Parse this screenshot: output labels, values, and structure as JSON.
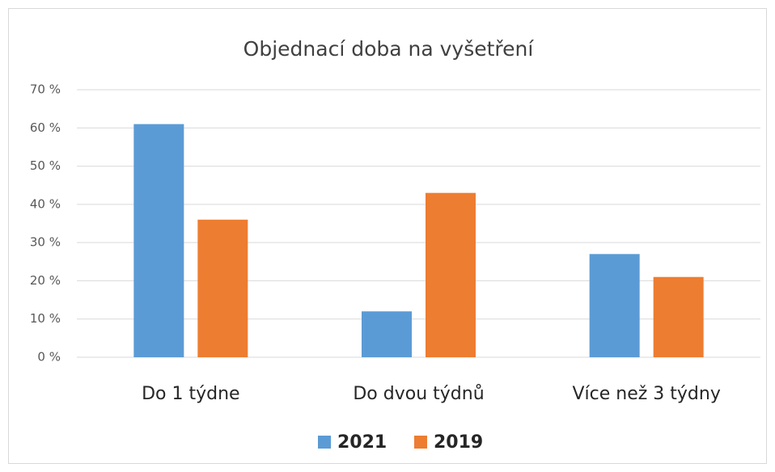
{
  "chart_data": {
    "type": "bar",
    "title": "Objednací doba na vyšetření",
    "categories": [
      "Do 1 týdne",
      "Do dvou týdnů",
      "Více než 3 týdny"
    ],
    "series": [
      {
        "name": "2021",
        "color": "#5b9bd5",
        "values": [
          61,
          12,
          27
        ]
      },
      {
        "name": "2019",
        "color": "#ed7d31",
        "values": [
          36,
          43,
          21
        ]
      }
    ],
    "ylim": [
      0,
      70
    ],
    "yticks": [
      {
        "value": 0,
        "label": "0 %"
      },
      {
        "value": 10,
        "label": "10 %"
      },
      {
        "value": 20,
        "label": "20 %"
      },
      {
        "value": 30,
        "label": "30 %"
      },
      {
        "value": 40,
        "label": "40 %"
      },
      {
        "value": 50,
        "label": "50 %"
      },
      {
        "value": 60,
        "label": "60 %"
      },
      {
        "value": 70,
        "label": "70 %"
      }
    ],
    "grid": true,
    "legend": "bottom"
  }
}
